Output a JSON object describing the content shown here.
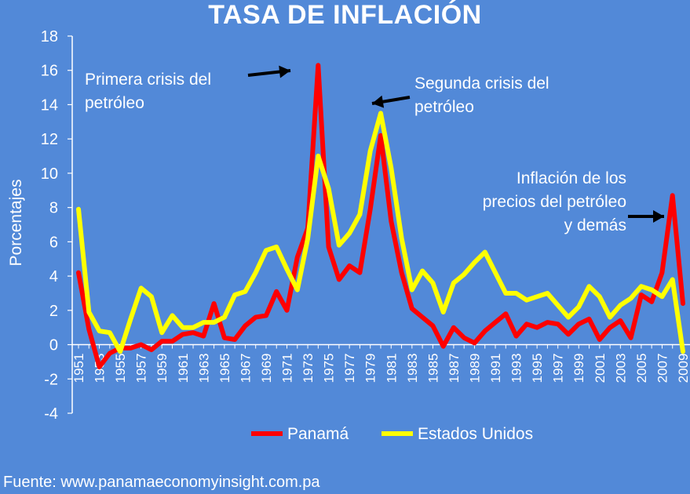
{
  "title": "TASA DE INFLACIÓN",
  "source": "Fuente: www.panamaeconomyinsight.com.pa",
  "chart_data": {
    "type": "line",
    "ylabel": "Porcentajes",
    "xlabel": "",
    "ylim": [
      -4,
      18
    ],
    "yticks": [
      -4,
      -2,
      0,
      2,
      4,
      6,
      8,
      10,
      12,
      14,
      16,
      18
    ],
    "x": [
      1951,
      1952,
      1953,
      1954,
      1955,
      1956,
      1957,
      1958,
      1959,
      1960,
      1961,
      1962,
      1963,
      1964,
      1965,
      1966,
      1967,
      1968,
      1969,
      1970,
      1971,
      1972,
      1973,
      1974,
      1975,
      1976,
      1977,
      1978,
      1979,
      1980,
      1981,
      1982,
      1983,
      1984,
      1985,
      1986,
      1987,
      1988,
      1989,
      1990,
      1991,
      1992,
      1993,
      1994,
      1995,
      1996,
      1997,
      1998,
      1999,
      2000,
      2001,
      2002,
      2003,
      2004,
      2005,
      2006,
      2007,
      2008,
      2009
    ],
    "xtick_labels": [
      "1951",
      "1953",
      "1955",
      "1957",
      "1959",
      "1961",
      "1963",
      "1965",
      "1967",
      "1969",
      "1971",
      "1973",
      "1975",
      "1977",
      "1979",
      "1981",
      "1983",
      "1985",
      "1987",
      "1989",
      "1991",
      "1993",
      "1995",
      "1997",
      "1999",
      "2001",
      "2003",
      "2005",
      "2007",
      "2009"
    ],
    "series": [
      {
        "name": "Panamá",
        "color": "#FF0000",
        "values": [
          4.2,
          0.9,
          -1.3,
          -0.5,
          -0.2,
          -0.2,
          0,
          -0.3,
          0.2,
          0.2,
          0.6,
          0.7,
          0.5,
          2.4,
          0.4,
          0.3,
          1.1,
          1.6,
          1.7,
          3.1,
          2,
          5.1,
          6.8,
          16.3,
          5.7,
          3.8,
          4.6,
          4.2,
          7.9,
          12.2,
          7.2,
          4.2,
          2.1,
          1.6,
          1.1,
          -0.1,
          1,
          0.4,
          0.1,
          0.8,
          1.3,
          1.8,
          0.5,
          1.2,
          1,
          1.3,
          1.2,
          0.6,
          1.2,
          1.5,
          0.3,
          1,
          1.4,
          0.4,
          2.9,
          2.5,
          4.2,
          8.7,
          2.4
        ]
      },
      {
        "name": "Estados Unidos",
        "color": "#FFFF00",
        "values": [
          7.9,
          1.9,
          0.8,
          0.7,
          -0.4,
          1.5,
          3.3,
          2.8,
          0.7,
          1.7,
          1,
          1,
          1.3,
          1.3,
          1.6,
          2.9,
          3.1,
          4.2,
          5.5,
          5.7,
          4.4,
          3.2,
          6.2,
          11,
          9.1,
          5.8,
          6.5,
          7.6,
          11.3,
          13.5,
          10.3,
          6.2,
          3.2,
          4.3,
          3.6,
          1.9,
          3.6,
          4.1,
          4.8,
          5.4,
          4.2,
          3,
          3,
          2.6,
          2.8,
          3,
          2.3,
          1.6,
          2.2,
          3.4,
          2.8,
          1.6,
          2.3,
          2.7,
          3.4,
          3.2,
          2.8,
          3.8,
          -0.4
        ]
      }
    ],
    "annotations": [
      {
        "lines": [
          "Primera crisis del",
          "petróleo"
        ]
      },
      {
        "lines": [
          "Segunda crisis del",
          "petróleo"
        ]
      },
      {
        "lines": [
          "Inflación de los",
          "precios del petróleo",
          "y demás"
        ]
      }
    ],
    "legend": "bottom-center",
    "grid": false,
    "background": "#5289D8"
  }
}
